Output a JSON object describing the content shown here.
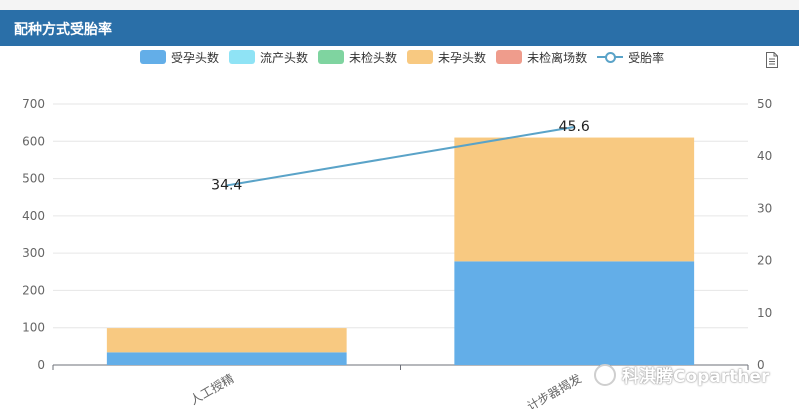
{
  "header": {
    "title": "配种方式受胎率"
  },
  "legend": [
    {
      "label": "受孕头数",
      "color": "#63aee8",
      "kind": "bar"
    },
    {
      "label": "流产头数",
      "color": "#8fe3f5",
      "kind": "bar"
    },
    {
      "label": "未检头数",
      "color": "#7fd4a0",
      "kind": "bar"
    },
    {
      "label": "未孕头数",
      "color": "#f8c981",
      "kind": "bar"
    },
    {
      "label": "未检离场数",
      "color": "#ef9c8c",
      "kind": "bar"
    },
    {
      "label": "受胎率",
      "color": "#5aa3c8",
      "kind": "line"
    }
  ],
  "toolbar": {
    "icon": "document-icon"
  },
  "watermark": {
    "text": "科淇腾Coparther",
    "icon": "wechat-logo"
  },
  "chart_data": {
    "type": "bar",
    "stacked": true,
    "categories": [
      "人工授精",
      "计步器揭发"
    ],
    "series": [
      {
        "name": "受孕头数",
        "values": [
          34,
          278
        ],
        "color": "#63aee8"
      },
      {
        "name": "流产头数",
        "values": [
          0,
          0
        ],
        "color": "#8fe3f5"
      },
      {
        "name": "未检头数",
        "values": [
          0,
          0
        ],
        "color": "#7fd4a0"
      },
      {
        "name": "未孕头数",
        "values": [
          65,
          332
        ],
        "color": "#f8c981"
      },
      {
        "name": "未检离场数",
        "values": [
          0,
          0
        ],
        "color": "#ef9c8c"
      }
    ],
    "line_series": {
      "name": "受胎率",
      "values": [
        34.4,
        45.6
      ],
      "labels": [
        "34.4",
        "45.6"
      ],
      "color": "#5aa3c8",
      "axis": "right"
    },
    "y_left": {
      "min": 0,
      "max": 700,
      "ticks": [
        0,
        100,
        200,
        300,
        400,
        500,
        600,
        700
      ]
    },
    "y_right": {
      "min": 0,
      "max": 50,
      "ticks": [
        0,
        10,
        20,
        30,
        40,
        50
      ]
    },
    "grid": true
  }
}
